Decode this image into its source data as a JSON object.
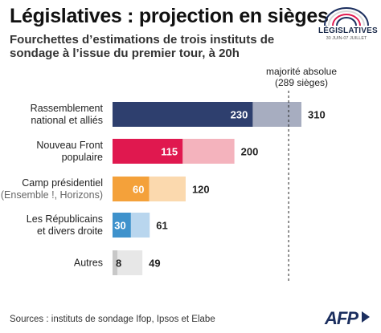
{
  "header": {
    "title": "Législatives : projection en sièges",
    "subtitle": "Fourchettes d’estimations de trois instituts de sondage à l’issue du premier tour, à 20h"
  },
  "logo": {
    "text": "LÉGISLATIVES",
    "dates": "30 JUIN-07 JUILLET"
  },
  "majority": {
    "label": "majorité absolue",
    "sublabel": "(289 sièges)",
    "value": 289
  },
  "footer": {
    "sources": "Sources : instituts de sondage Ifop, Ipsos et Elabe",
    "brand": "AFP"
  },
  "chart_data": {
    "type": "bar",
    "orientation": "horizontal",
    "title": "Législatives : projection en sièges",
    "subtitle": "Fourchettes d’estimations de trois instituts de sondage à l’issue du premier tour, à 20h",
    "xlim": [
      0,
      330
    ],
    "reference_line": {
      "label": "majorité absolue (289 sièges)",
      "value": 289
    },
    "categories": [
      {
        "label": [
          "Rassemblement",
          "national et alliés"
        ],
        "low": 230,
        "high": 310,
        "color_low": "#2e3f6e",
        "color_high": "#a7adc0",
        "low_text_color": "#ffffff"
      },
      {
        "label": [
          "Nouveau Front",
          "populaire"
        ],
        "low": 115,
        "high": 200,
        "color_low": "#e0184f",
        "color_high": "#f4b3bd",
        "low_text_color": "#ffffff"
      },
      {
        "label": [
          "Camp présidentiel",
          "(Ensemble !, Horizons)"
        ],
        "low": 60,
        "high": 120,
        "color_low": "#f4a13a",
        "color_high": "#fbd9ae",
        "low_text_color": "#ffffff"
      },
      {
        "label": [
          "Les Républicains",
          "et divers droite"
        ],
        "low": 30,
        "high": 61,
        "color_low": "#3f92cc",
        "color_high": "#b9d6ee",
        "low_text_color": "#ffffff"
      },
      {
        "label": [
          "Autres"
        ],
        "low": 8,
        "high": 49,
        "color_low": "#c8c8c8",
        "color_high": "#e7e7e7",
        "low_text_color": "#222222"
      }
    ]
  }
}
